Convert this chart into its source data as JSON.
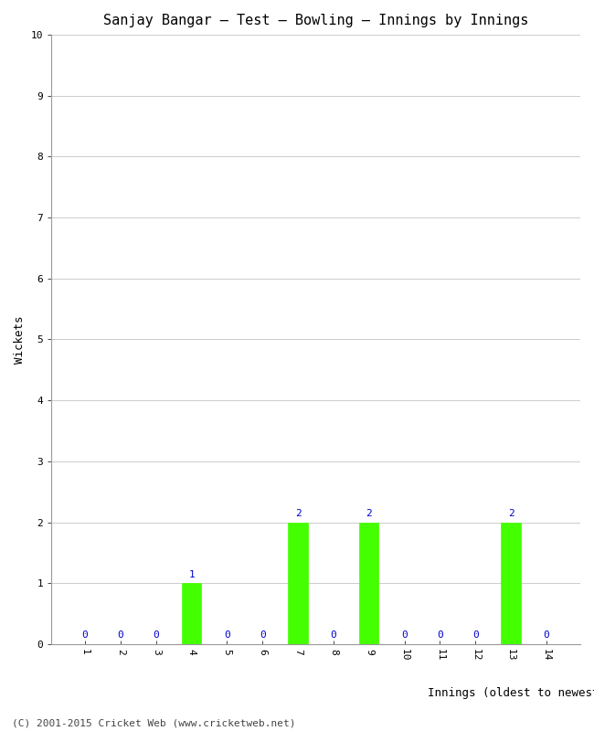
{
  "title": "Sanjay Bangar – Test – Bowling – Innings by Innings",
  "xlabel": "Innings (oldest to newest)",
  "ylabel": "Wickets",
  "categories": [
    1,
    2,
    3,
    4,
    5,
    6,
    7,
    8,
    9,
    10,
    11,
    12,
    13,
    14
  ],
  "values": [
    0,
    0,
    0,
    1,
    0,
    0,
    2,
    0,
    2,
    0,
    0,
    0,
    2,
    0
  ],
  "bar_color": "#44ff00",
  "bar_edge_color": "#44ff00",
  "label_color": "#0000cc",
  "label_fontsize": 8,
  "ylim": [
    0,
    10
  ],
  "yticks": [
    0,
    1,
    2,
    3,
    4,
    5,
    6,
    7,
    8,
    9,
    10
  ],
  "xticks": [
    1,
    2,
    3,
    4,
    5,
    6,
    7,
    8,
    9,
    10,
    11,
    12,
    13,
    14
  ],
  "grid_color": "#cccccc",
  "background_color": "#ffffff",
  "plot_bg_color": "#ffffff",
  "title_fontsize": 11,
  "axis_label_fontsize": 9,
  "tick_fontsize": 8,
  "footer_text": "(C) 2001-2015 Cricket Web (www.cricketweb.net)",
  "footer_fontsize": 8,
  "footer_color": "#444444"
}
